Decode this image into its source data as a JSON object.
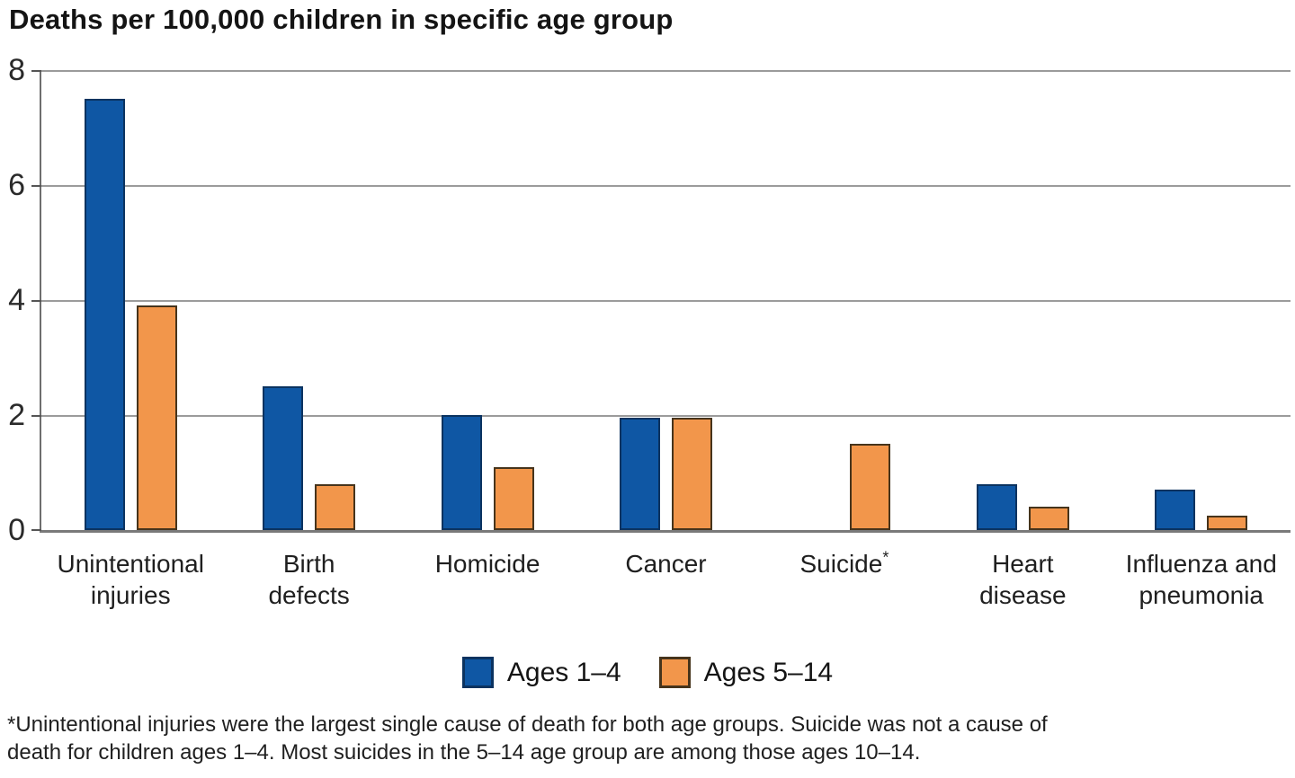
{
  "title": "Deaths per 100,000 children in specific age group",
  "colors": {
    "series1_fill": "#0F57A4",
    "series1_border": "#0B3360",
    "series2_fill": "#F2964B",
    "series2_border": "#46341C",
    "gridline": "#9B9B9B",
    "axis": "#7A7A7A"
  },
  "legend": {
    "items": [
      {
        "label": "Ages 1–4"
      },
      {
        "label": "Ages 5–14"
      }
    ]
  },
  "footnote_lines": [
    "*Unintentional injuries were the largest single cause of death for both age groups. Suicide was not a cause of",
    "death for children ages 1–4. Most suicides in the 5–14 age group are among those ages 10–14."
  ],
  "chart_data": {
    "type": "bar",
    "title": "Deaths per 100,000 children in specific age group",
    "categories": [
      "Unintentional injuries",
      "Birth defects",
      "Homicide",
      "Cancer",
      "Suicide*",
      "Heart disease",
      "Influenza and pneumonia"
    ],
    "category_lines": [
      [
        "Unintentional",
        "injuries"
      ],
      [
        "Birth",
        "defects"
      ],
      [
        "Homicide"
      ],
      [
        "Cancer"
      ],
      [
        "Suicide*"
      ],
      [
        "Heart",
        "disease"
      ],
      [
        "Influenza and",
        "pneumonia"
      ]
    ],
    "series": [
      {
        "name": "Ages 1–4",
        "color": "#0F57A4",
        "border_color": "#0B3360",
        "values": [
          7.5,
          2.5,
          2.0,
          1.95,
          null,
          0.8,
          0.7
        ]
      },
      {
        "name": "Ages 5–14",
        "color": "#F2964B",
        "border_color": "#46341C",
        "values": [
          3.9,
          0.8,
          1.1,
          1.95,
          1.5,
          0.4,
          0.25
        ]
      }
    ],
    "xlabel": "",
    "ylabel": "",
    "ylim": [
      0,
      8
    ],
    "yticks": [
      0,
      2,
      4,
      6,
      8
    ],
    "grid": true,
    "legend_position": "bottom",
    "footnote": "*Unintentional injuries were the largest single cause of death for both age groups. Suicide was not a cause of death for children ages 1–4. Most suicides in the 5–14 age group are among those ages 10–14."
  }
}
